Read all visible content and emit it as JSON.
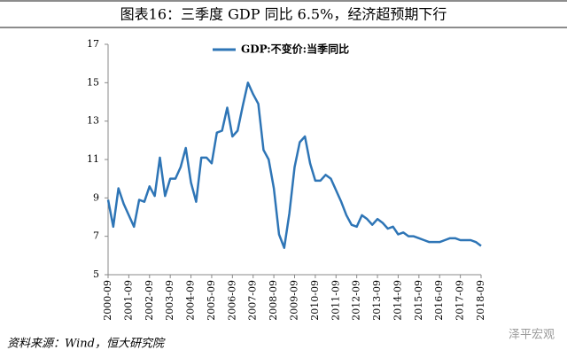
{
  "chart_data": {
    "type": "line",
    "title": "图表16：三季度 GDP 同比 6.5%，经济超预期下行",
    "source": "资料来源：Wind，恒大研究院",
    "watermark": "泽平宏观",
    "categories": [
      "2000-09",
      null,
      null,
      null,
      "2001-09",
      null,
      null,
      null,
      "2002-09",
      null,
      null,
      null,
      "2003-09",
      null,
      null,
      null,
      "2004-09",
      null,
      null,
      null,
      "2005-09",
      null,
      null,
      null,
      "2006-09",
      null,
      null,
      null,
      "2007-09",
      null,
      null,
      null,
      "2008-09",
      null,
      null,
      null,
      "2009-09",
      null,
      null,
      null,
      "2010-09",
      null,
      null,
      null,
      "2011-09",
      null,
      null,
      null,
      "2012-09",
      null,
      null,
      null,
      "2013-09",
      null,
      null,
      null,
      "2014-09",
      null,
      null,
      null,
      "2015-09",
      null,
      null,
      null,
      "2016-09",
      null,
      null,
      null,
      "2017-09",
      null,
      null,
      null,
      "2018-09"
    ],
    "series": [
      {
        "name": "GDP:不变价:当季同比",
        "color": "#2e75b6",
        "values": [
          8.9,
          7.5,
          9.5,
          8.7,
          8.1,
          7.5,
          8.9,
          8.8,
          9.6,
          9.1,
          11.1,
          9.1,
          10.0,
          10.0,
          10.6,
          11.6,
          9.8,
          8.8,
          11.1,
          11.1,
          10.8,
          12.4,
          12.5,
          13.7,
          12.2,
          12.5,
          13.8,
          15.0,
          14.4,
          13.9,
          11.5,
          11.0,
          9.5,
          7.1,
          6.4,
          8.2,
          10.6,
          11.9,
          12.2,
          10.8,
          9.9,
          9.9,
          10.2,
          10.0,
          9.4,
          8.8,
          8.1,
          7.6,
          7.5,
          8.1,
          7.9,
          7.6,
          7.9,
          7.7,
          7.4,
          7.5,
          7.1,
          7.2,
          7.0,
          7.0,
          6.9,
          6.8,
          6.7,
          6.7,
          6.7,
          6.8,
          6.9,
          6.9,
          6.8,
          6.8,
          6.8,
          6.7,
          6.5
        ]
      }
    ],
    "ylim": [
      5,
      17
    ],
    "yticks": [
      5,
      7,
      9,
      11,
      13,
      15,
      17
    ],
    "grid": false
  }
}
